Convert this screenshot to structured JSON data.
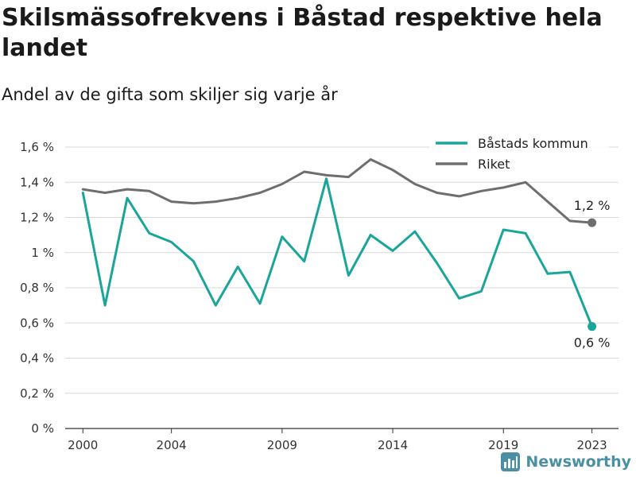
{
  "title": "Skilsmässofrekvens i Båstad respektive hela landet",
  "subtitle": "Andel av de gifta som skiljer sig varje år",
  "logo_text": "Newsworthy",
  "chart_data": {
    "type": "line",
    "x": [
      2000,
      2001,
      2002,
      2003,
      2004,
      2005,
      2006,
      2007,
      2008,
      2009,
      2010,
      2011,
      2012,
      2013,
      2014,
      2015,
      2016,
      2017,
      2018,
      2019,
      2020,
      2021,
      2022,
      2023
    ],
    "x_tick_labels": [
      "2000",
      "2004",
      "2009",
      "2014",
      "2019",
      "2023"
    ],
    "x_tick_values": [
      2000,
      2004,
      2009,
      2014,
      2019,
      2023
    ],
    "y_tick_labels": [
      "0 %",
      "0,2 %",
      "0,4 %",
      "0,6 %",
      "0,8 %",
      "1 %",
      "1,2 %",
      "1,4 %",
      "1,6 %"
    ],
    "y_tick_values": [
      0,
      0.2,
      0.4,
      0.6,
      0.8,
      1.0,
      1.2,
      1.4,
      1.6
    ],
    "ylim": [
      0,
      1.6
    ],
    "xlim": [
      1999.2,
      2024.2
    ],
    "grid": true,
    "legend_position": "top-right",
    "series": [
      {
        "name": "Båstads kommun",
        "color": "#1aa59a",
        "values": [
          1.34,
          0.7,
          1.31,
          1.11,
          1.06,
          0.95,
          0.7,
          0.92,
          0.71,
          1.09,
          0.95,
          1.42,
          0.87,
          1.1,
          1.01,
          1.12,
          0.94,
          0.74,
          0.78,
          1.13,
          1.11,
          0.88,
          0.89,
          0.58
        ],
        "end_label": "0,6 %"
      },
      {
        "name": "Riket",
        "color": "#6e6e6e",
        "values": [
          1.36,
          1.34,
          1.36,
          1.35,
          1.29,
          1.28,
          1.29,
          1.31,
          1.34,
          1.39,
          1.46,
          1.44,
          1.43,
          1.53,
          1.47,
          1.39,
          1.34,
          1.32,
          1.35,
          1.37,
          1.4,
          1.29,
          1.18,
          1.17
        ],
        "end_label": "1,2 %"
      }
    ]
  }
}
